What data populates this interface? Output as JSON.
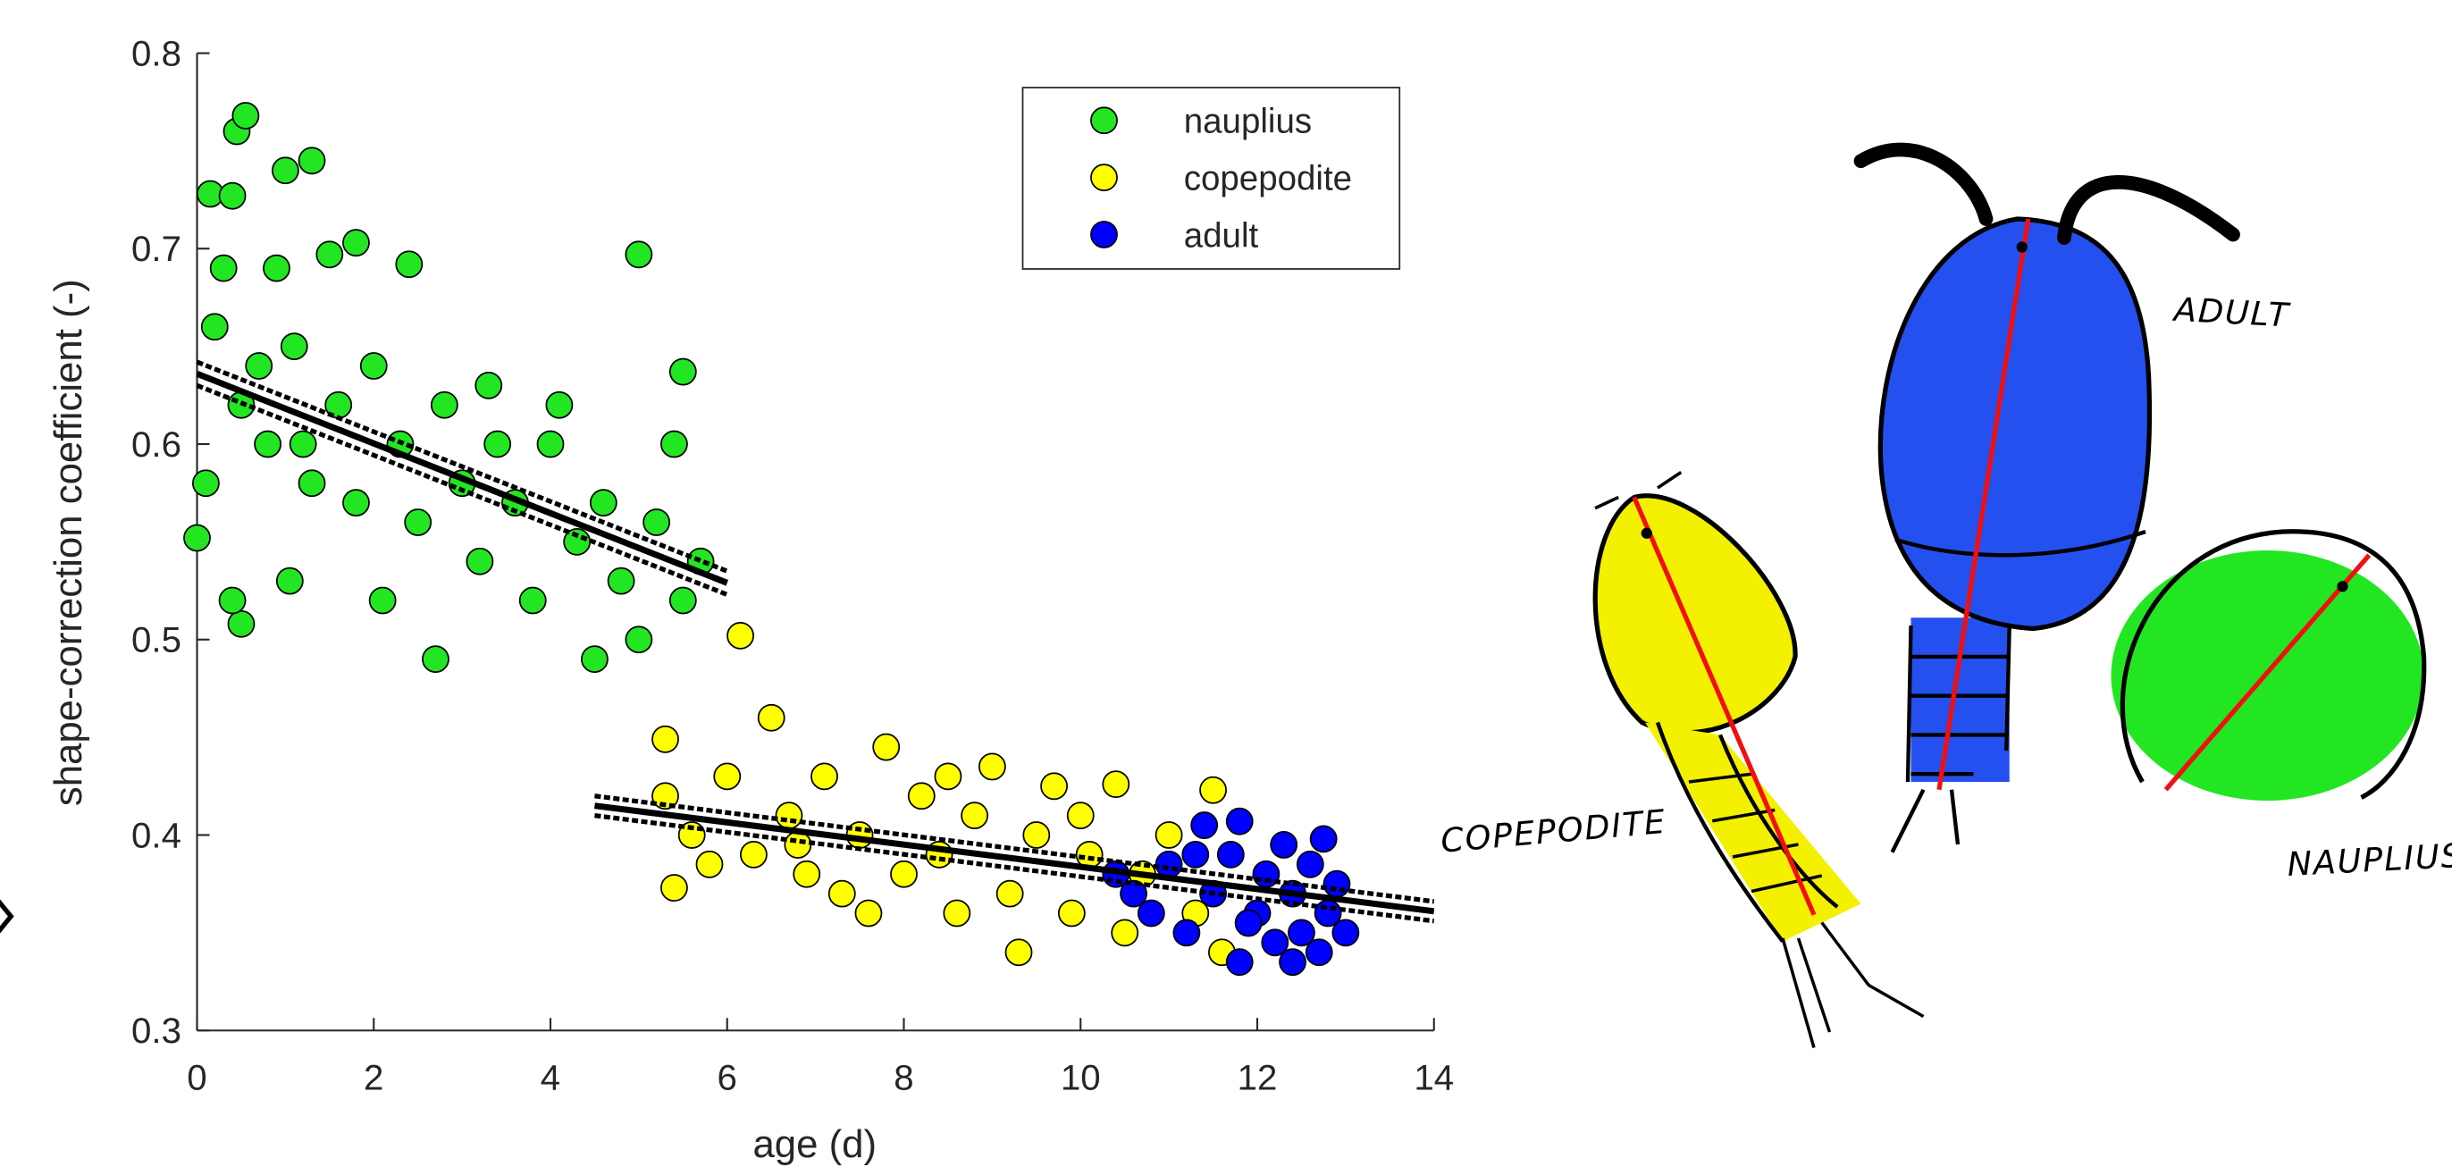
{
  "chart_data": {
    "type": "scatter",
    "xlabel": "age (d)",
    "ylabel": "shape-correction coefficient (-)",
    "xlim": [
      0,
      14
    ],
    "ylim": [
      0.3,
      0.8
    ],
    "xticks": [
      0,
      2,
      4,
      6,
      8,
      10,
      12,
      14
    ],
    "yticks": [
      0.3,
      0.4,
      0.5,
      0.6,
      0.7,
      0.8
    ],
    "legend": "upper right",
    "series": [
      {
        "name": "nauplius",
        "color": "#22e622",
        "x": [
          0.0,
          0.1,
          0.15,
          0.2,
          0.3,
          0.4,
          0.45,
          0.55,
          0.5,
          0.4,
          0.5,
          0.7,
          0.8,
          0.9,
          1.0,
          1.05,
          1.1,
          1.3,
          1.3,
          1.5,
          1.6,
          1.8,
          1.8,
          2.0,
          2.1,
          2.3,
          2.4,
          2.5,
          2.7,
          2.8,
          3.0,
          3.2,
          3.4,
          3.6,
          3.8,
          4.0,
          4.1,
          4.3,
          4.5,
          4.6,
          4.8,
          5.0,
          5.0,
          5.2,
          5.4,
          5.5,
          5.5,
          5.7,
          3.3,
          1.2
        ],
        "values": [
          0.552,
          0.58,
          0.728,
          0.66,
          0.69,
          0.727,
          0.76,
          0.768,
          0.508,
          0.52,
          0.62,
          0.64,
          0.6,
          0.69,
          0.74,
          0.53,
          0.65,
          0.745,
          0.58,
          0.697,
          0.62,
          0.703,
          0.57,
          0.64,
          0.52,
          0.6,
          0.692,
          0.56,
          0.49,
          0.62,
          0.58,
          0.54,
          0.6,
          0.57,
          0.52,
          0.6,
          0.62,
          0.55,
          0.49,
          0.57,
          0.53,
          0.697,
          0.5,
          0.56,
          0.6,
          0.637,
          0.52,
          0.54,
          0.63,
          0.6
        ]
      },
      {
        "name": "copepodite",
        "color": "#ffff00",
        "x": [
          5.3,
          5.3,
          5.4,
          5.6,
          6.0,
          6.15,
          6.3,
          6.5,
          6.7,
          6.9,
          7.1,
          7.3,
          7.5,
          7.8,
          8.0,
          8.2,
          8.4,
          8.6,
          8.8,
          9.0,
          9.2,
          9.3,
          9.5,
          9.7,
          9.9,
          10.1,
          10.4,
          10.5,
          10.7,
          11.0,
          11.3,
          11.5,
          11.6,
          7.6,
          8.5,
          6.8,
          5.8,
          10.0
        ],
        "values": [
          0.449,
          0.42,
          0.373,
          0.4,
          0.43,
          0.502,
          0.39,
          0.46,
          0.41,
          0.38,
          0.43,
          0.37,
          0.4,
          0.445,
          0.38,
          0.42,
          0.39,
          0.36,
          0.41,
          0.435,
          0.37,
          0.34,
          0.4,
          0.425,
          0.36,
          0.39,
          0.426,
          0.35,
          0.38,
          0.4,
          0.36,
          0.423,
          0.34,
          0.36,
          0.43,
          0.395,
          0.385,
          0.41
        ]
      },
      {
        "name": "adult",
        "color": "#0000ff",
        "x": [
          10.4,
          10.6,
          10.8,
          11.0,
          11.2,
          11.4,
          11.5,
          11.7,
          11.8,
          11.8,
          12.0,
          12.1,
          12.2,
          12.3,
          12.4,
          12.5,
          12.6,
          12.7,
          12.75,
          12.8,
          12.9,
          13.0,
          12.4,
          11.3,
          11.9
        ],
        "values": [
          0.38,
          0.37,
          0.36,
          0.385,
          0.35,
          0.405,
          0.37,
          0.39,
          0.335,
          0.407,
          0.36,
          0.38,
          0.345,
          0.395,
          0.37,
          0.35,
          0.385,
          0.34,
          0.398,
          0.36,
          0.375,
          0.35,
          0.335,
          0.39,
          0.355
        ]
      }
    ],
    "fit_lines": [
      {
        "x": [
          0,
          6
        ],
        "y": [
          0.636,
          0.529
        ],
        "lower": [
          0.63,
          0.523
        ],
        "upper": [
          0.642,
          0.535
        ]
      },
      {
        "x": [
          4.5,
          14
        ],
        "y": [
          0.415,
          0.361
        ],
        "lower": [
          0.41,
          0.356
        ],
        "upper": [
          0.42,
          0.366
        ]
      }
    ],
    "annotations": [
      "ADULT",
      "COPEPODITE",
      "NAUPLIUS"
    ]
  }
}
